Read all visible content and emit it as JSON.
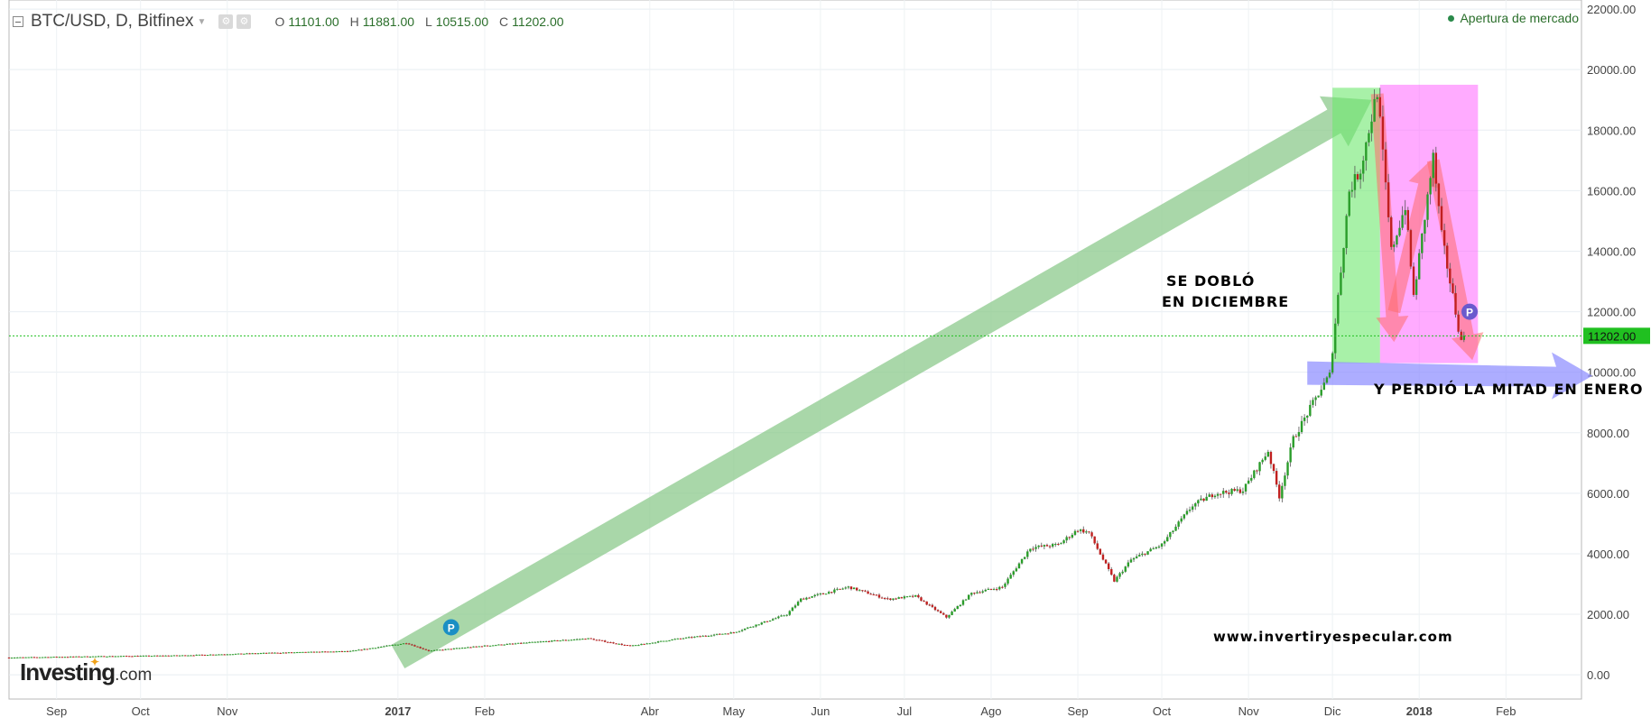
{
  "header": {
    "symbol": "BTC/USD, D, Bitfinex",
    "ohlc": {
      "o_label": "O",
      "o": "11101.00",
      "h_label": "H",
      "h": "11881.00",
      "l_label": "L",
      "l": "10515.00",
      "c_label": "C",
      "c": "11202.00"
    },
    "market_status": "Apertura de mercado"
  },
  "brand": {
    "name": "Investing",
    "suffix": ".com"
  },
  "annotations": {
    "doubled_line1": "SE DOBLÓ",
    "doubled_line2": "EN DICIEMBRE",
    "lost_half": "Y PERDIÓ LA MITAD EN ENERO",
    "website": "www.invertiryespecular.com"
  },
  "colors": {
    "up": "#2a9d2a",
    "down": "#c0201f",
    "last_price": "#20c020",
    "green_arrow": "#8cc98c",
    "green_zone": "#6ee86e",
    "pink_zone": "#ff66ff",
    "blue_arrow": "#8a8aff",
    "red_arrow": "#ff6b6b",
    "marker": "#1a8fc4"
  },
  "chart_data": {
    "type": "candlestick",
    "title": "BTC/USD, D, Bitfinex",
    "price_scale": {
      "ylim": [
        -800,
        22300
      ],
      "ticks": [
        0,
        2000,
        4000,
        6000,
        8000,
        10000,
        12000,
        14000,
        16000,
        18000,
        20000,
        22000
      ],
      "tick_labels": [
        "0.00",
        "2000.00",
        "4000.00",
        "6000.00",
        "8000.00",
        "10000.00",
        "12000.00",
        "14000.00",
        "16000.00",
        "18000.00",
        "20000.00",
        "22000.00"
      ]
    },
    "time_scale": {
      "start": "2016-08-15",
      "end": "2018-02-28",
      "ticks": [
        "2016-09-01",
        "2016-10-01",
        "2016-11-01",
        "2017-01-01",
        "2017-02-01",
        "2017-04-01",
        "2017-05-01",
        "2017-06-01",
        "2017-07-01",
        "2017-08-01",
        "2017-09-01",
        "2017-10-01",
        "2017-11-01",
        "2017-12-01",
        "2018-01-01",
        "2018-02-01"
      ],
      "tick_labels": [
        "Sep",
        "Oct",
        "Nov",
        "2017",
        "Feb",
        "Abr",
        "May",
        "Jun",
        "Jul",
        "Ago",
        "Sep",
        "Oct",
        "Nov",
        "Dic",
        "2018",
        "Feb"
      ],
      "bold": [
        false,
        false,
        false,
        true,
        false,
        false,
        false,
        false,
        false,
        false,
        false,
        false,
        false,
        false,
        true,
        false
      ]
    },
    "last_price": {
      "value": 11202.0,
      "label": "11202.00"
    },
    "grid": true,
    "anchors": [
      [
        "2016-08-15",
        570
      ],
      [
        "2016-09-15",
        610
      ],
      [
        "2016-10-15",
        640
      ],
      [
        "2016-11-15",
        720
      ],
      [
        "2016-12-15",
        780
      ],
      [
        "2017-01-04",
        1050
      ],
      [
        "2017-01-12",
        790
      ],
      [
        "2017-02-01",
        960
      ],
      [
        "2017-02-22",
        1100
      ],
      [
        "2017-03-10",
        1200
      ],
      [
        "2017-03-25",
        950
      ],
      [
        "2017-04-10",
        1180
      ],
      [
        "2017-05-01",
        1400
      ],
      [
        "2017-05-20",
        2000
      ],
      [
        "2017-05-25",
        2500
      ],
      [
        "2017-06-11",
        2900
      ],
      [
        "2017-06-25",
        2500
      ],
      [
        "2017-07-05",
        2600
      ],
      [
        "2017-07-16",
        1900
      ],
      [
        "2017-07-25",
        2700
      ],
      [
        "2017-08-05",
        2900
      ],
      [
        "2017-08-15",
        4200
      ],
      [
        "2017-08-25",
        4300
      ],
      [
        "2017-09-01",
        4800
      ],
      [
        "2017-09-05",
        4700
      ],
      [
        "2017-09-14",
        3100
      ],
      [
        "2017-09-20",
        3800
      ],
      [
        "2017-10-01",
        4300
      ],
      [
        "2017-10-12",
        5600
      ],
      [
        "2017-10-20",
        6000
      ],
      [
        "2017-10-30",
        6100
      ],
      [
        "2017-11-08",
        7400
      ],
      [
        "2017-11-12",
        5900
      ],
      [
        "2017-11-17",
        7800
      ],
      [
        "2017-11-26",
        9300
      ],
      [
        "2017-11-30",
        9900
      ],
      [
        "2017-12-07",
        16000
      ],
      [
        "2017-12-11",
        16700
      ],
      [
        "2017-12-17",
        19300
      ],
      [
        "2017-12-22",
        14000
      ],
      [
        "2017-12-27",
        15500
      ],
      [
        "2017-12-30",
        12500
      ],
      [
        "2018-01-06",
        17100
      ],
      [
        "2018-01-09",
        14500
      ],
      [
        "2018-01-16",
        11000
      ],
      [
        "2018-01-17",
        11202
      ]
    ]
  }
}
